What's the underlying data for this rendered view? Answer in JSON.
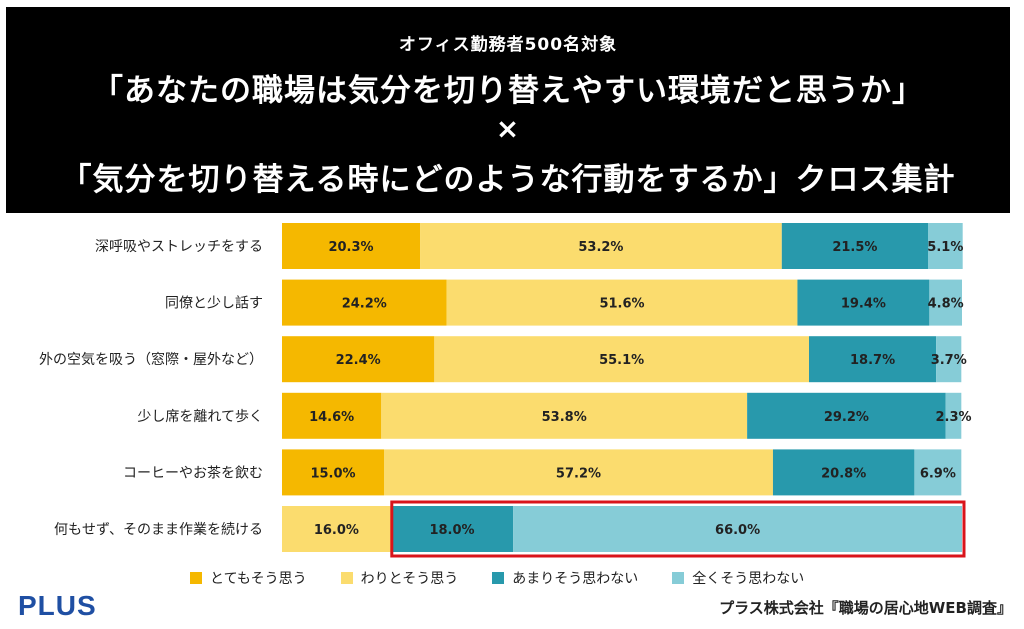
{
  "header": {
    "subtitle": "オフィス勤務者500名対象",
    "title_line1": "「あなたの職場は気分を切り替えやすい環境だと思うか」",
    "times": "×",
    "title_line2": "「気分を切り替える時にどのような行動をするか」クロス集計"
  },
  "chart_data": {
    "type": "bar",
    "orientation": "horizontal",
    "stacked": true,
    "percent_stacked": true,
    "unit": "%",
    "categories": [
      "深呼吸やストレッチをする",
      "同僚と少し話す",
      "外の空気を吸う（窓際・屋外など）",
      "少し席を離れて歩く",
      "コーヒーやお茶を飲む",
      "何もせず、そのまま作業を続ける"
    ],
    "series": [
      {
        "name": "とてもそう思う",
        "color": "#f5b800",
        "values": [
          20.3,
          24.2,
          22.4,
          14.6,
          15.0,
          0
        ]
      },
      {
        "name": "わりとそう思う",
        "color": "#fbdc6e",
        "values": [
          53.2,
          51.6,
          55.1,
          53.8,
          57.2,
          16.0
        ]
      },
      {
        "name": "あまりそう思わない",
        "color": "#2899ac",
        "values": [
          21.5,
          19.4,
          18.7,
          29.2,
          20.8,
          18.0
        ]
      },
      {
        "name": "全くそう思わない",
        "color": "#86ccd7",
        "values": [
          5.1,
          4.8,
          3.7,
          2.3,
          6.9,
          66.0
        ]
      }
    ],
    "highlight_category_index": 5,
    "highlight_color": "#d9141b",
    "legend_position": "bottom",
    "grid": false
  },
  "footer": {
    "logo": "PLUS",
    "logo_color": "#1f4fa3",
    "source": "プラス株式会社『職場の居心地WEB調査』"
  }
}
